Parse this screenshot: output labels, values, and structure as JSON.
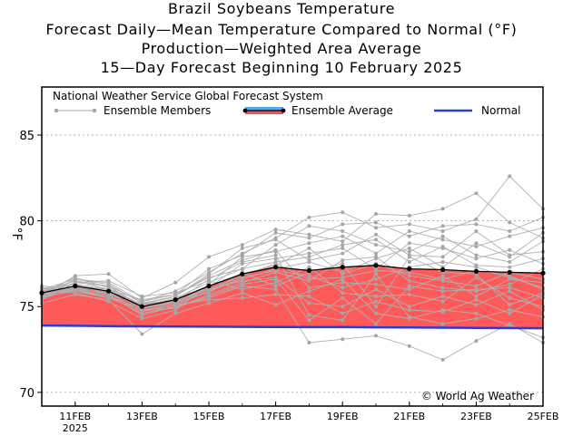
{
  "title_lines": [
    "Brazil Soybeans Temperature",
    "Forecast Daily—Mean Temperature Compared to Normal (°F)",
    "Production—Weighted Area Average",
    "15—Day Forecast Beginning 10 February 2025"
  ],
  "chart_data": {
    "type": "line",
    "ylabel": "°F",
    "ylim": [
      69.2,
      87.8
    ],
    "yticks": [
      70,
      75,
      80,
      85
    ],
    "ytick_labels": [
      "70",
      "75",
      "80",
      "85"
    ],
    "xlim": [
      "2025-02-10",
      "2025-02-25"
    ],
    "xtick_labels": [
      "11FEB",
      "13FEB",
      "15FEB",
      "17FEB",
      "19FEB",
      "21FEB",
      "23FEB",
      "25FEB"
    ],
    "xtick_sublabels": [
      "2025",
      "",
      "",
      "",
      "",
      "",
      "",
      ""
    ],
    "grid": true,
    "legend": {
      "placement": "top",
      "header": "National Weather Service Global Forecast System",
      "items": [
        "Ensemble Members",
        "Ensemble Average",
        "Normal"
      ]
    },
    "annotation": "© World Ag Weather",
    "x": [
      "2025-02-10",
      "2025-02-11",
      "2025-02-12",
      "2025-02-13",
      "2025-02-14",
      "2025-02-15",
      "2025-02-16",
      "2025-02-17",
      "2025-02-18",
      "2025-02-19",
      "2025-02-20",
      "2025-02-21",
      "2025-02-22",
      "2025-02-23",
      "2025-02-24",
      "2025-02-25"
    ],
    "series": [
      {
        "name": "Ensemble Average",
        "color": "#000000",
        "fill": "#ff5a5a",
        "values": [
          75.8,
          76.2,
          75.9,
          75.0,
          75.4,
          76.2,
          76.9,
          77.3,
          77.1,
          77.3,
          77.4,
          77.2,
          77.15,
          77.05,
          77.0,
          76.95
        ]
      },
      {
        "name": "Normal",
        "color": "#2a3bd6",
        "values": [
          73.9,
          73.88,
          73.86,
          73.85,
          73.84,
          73.83,
          73.82,
          73.81,
          73.8,
          73.8,
          73.79,
          73.78,
          73.77,
          73.76,
          73.75,
          73.74
        ]
      }
    ],
    "members": [
      [
        75.9,
        76.5,
        76.2,
        75.3,
        75.9,
        77.0,
        78.1,
        79.0,
        80.2,
        80.5,
        79.6,
        79.8,
        79.4,
        80.1,
        82.6,
        80.7
      ],
      [
        75.6,
        76.8,
        76.9,
        75.5,
        76.4,
        77.9,
        78.6,
        79.5,
        79.2,
        78.8,
        80.4,
        80.3,
        80.7,
        81.6,
        79.9,
        79.0
      ],
      [
        76.0,
        76.3,
        75.7,
        74.5,
        75.0,
        75.5,
        76.2,
        76.0,
        72.9,
        73.1,
        73.3,
        72.7,
        71.9,
        73.0,
        74.0,
        72.9
      ],
      [
        75.2,
        75.7,
        75.4,
        73.4,
        74.6,
        75.2,
        75.8,
        75.1,
        75.9,
        76.6,
        74.6,
        74.3,
        74.8,
        74.6,
        73.9,
        73.2
      ],
      [
        75.7,
        76.2,
        76.0,
        75.4,
        75.7,
        76.7,
        77.2,
        78.6,
        79.7,
        79.4,
        78.6,
        78.2,
        79.1,
        78.0,
        77.6,
        78.8
      ],
      [
        76.1,
        75.9,
        75.5,
        74.8,
        74.9,
        75.7,
        76.4,
        77.0,
        76.5,
        77.7,
        77.9,
        76.5,
        76.1,
        75.9,
        76.3,
        77.2
      ],
      [
        75.5,
        76.6,
        76.3,
        75.2,
        75.3,
        76.1,
        77.5,
        77.8,
        78.1,
        78.4,
        77.2,
        78.7,
        78.4,
        77.8,
        78.3,
        77.5
      ],
      [
        76.2,
        76.0,
        75.8,
        74.7,
        75.1,
        75.9,
        76.7,
        77.1,
        76.8,
        76.1,
        76.6,
        77.3,
        77.6,
        77.3,
        76.7,
        76.1
      ],
      [
        75.4,
        76.4,
        76.5,
        75.6,
        75.8,
        76.5,
        76.0,
        76.4,
        77.3,
        75.8,
        75.6,
        75.7,
        75.3,
        76.7,
        75.5,
        75.0
      ],
      [
        75.9,
        75.8,
        75.3,
        74.3,
        74.8,
        76.3,
        77.9,
        78.2,
        78.7,
        79.1,
        78.1,
        79.4,
        78.9,
        78.5,
        79.1,
        79.6
      ],
      [
        75.6,
        76.1,
        75.9,
        75.0,
        75.5,
        76.0,
        76.5,
        76.7,
        75.2,
        75.0,
        76.0,
        75.0,
        75.6,
        75.1,
        75.9,
        74.8
      ],
      [
        75.8,
        76.7,
        76.1,
        75.1,
        75.6,
        76.9,
        78.4,
        78.9,
        77.7,
        78.1,
        79.2,
        78.0,
        77.9,
        79.4,
        78.0,
        78.2
      ],
      [
        75.7,
        76.0,
        75.6,
        74.9,
        75.2,
        76.2,
        76.9,
        77.4,
        78.4,
        76.9,
        77.5,
        76.8,
        76.5,
        76.2,
        77.0,
        76.6
      ],
      [
        76.0,
        76.3,
        76.0,
        75.1,
        75.4,
        75.8,
        77.0,
        76.2,
        77.0,
        77.5,
        75.0,
        77.9,
        77.0,
        76.9,
        75.1,
        75.8
      ],
      [
        75.5,
        76.2,
        75.9,
        74.9,
        75.3,
        76.6,
        77.6,
        78.0,
        74.5,
        74.2,
        76.9,
        74.4,
        74.0,
        74.3,
        74.8,
        74.4
      ],
      [
        75.8,
        76.5,
        76.0,
        75.0,
        75.5,
        76.4,
        77.2,
        77.6,
        77.9,
        78.6,
        78.9,
        77.6,
        78.5,
        77.4,
        77.3,
        77.8
      ],
      [
        75.9,
        76.1,
        75.7,
        75.2,
        75.6,
        76.8,
        77.7,
        78.3,
        76.1,
        76.4,
        76.3,
        76.0,
        76.8,
        75.6,
        76.6,
        76.4
      ],
      [
        75.7,
        76.4,
        76.2,
        75.0,
        75.2,
        75.9,
        76.6,
        77.2,
        77.6,
        77.0,
        77.8,
        78.4,
        77.3,
        78.7,
        77.9,
        79.3
      ],
      [
        75.6,
        75.9,
        75.6,
        74.6,
        75.0,
        75.6,
        76.3,
        76.6,
        74.2,
        75.5,
        74.0,
        76.2,
        75.9,
        76.0,
        76.1,
        75.5
      ],
      [
        76.0,
        76.6,
        76.4,
        75.3,
        75.7,
        77.2,
        78.0,
        79.3,
        79.0,
        79.8,
        79.9,
        79.1,
        79.7,
        79.8,
        79.4,
        80.2
      ],
      [
        75.8,
        76.2,
        75.8,
        75.1,
        75.3,
        76.0,
        76.8,
        77.5,
        76.6,
        76.7,
        77.1,
        77.0,
        76.6,
        77.1,
        76.8,
        76.0
      ],
      [
        75.5,
        76.0,
        75.5,
        74.8,
        75.1,
        75.4,
        75.5,
        75.7,
        75.6,
        74.6,
        75.3,
        74.8,
        74.7,
        75.4,
        74.6,
        75.7
      ]
    ]
  }
}
